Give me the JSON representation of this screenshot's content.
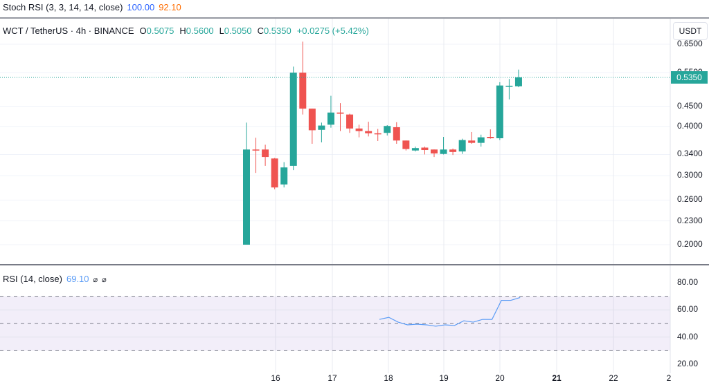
{
  "stoch_rsi": {
    "label": "Stoch RSI (3, 3, 14, 14, close)",
    "k_value": "100.00",
    "d_value": "92.10",
    "k_color": "#2962ff",
    "d_color": "#ff6d00"
  },
  "main": {
    "symbol": "WCT / TetherUS · 4h · BINANCE",
    "open_label": "O",
    "open": "0.5075",
    "high_label": "H",
    "high": "0.5600",
    "low_label": "L",
    "low": "0.5050",
    "close_label": "C",
    "close": "0.5350",
    "change": "+0.0275 (+5.42%)",
    "currency": "USDT",
    "last_price_tag": "0.5350",
    "up_color": "#26a69a",
    "down_color": "#ef5350",
    "price_axis": [
      "0.6500",
      "0.5500",
      "0.4500",
      "0.4000",
      "0.3400",
      "0.3000",
      "0.2600",
      "0.2300",
      "0.2000"
    ]
  },
  "rsi": {
    "label": "RSI (14, close)",
    "value": "69.10",
    "icon1": "⌀",
    "icon2": "⌀",
    "line_color": "#5b9cf6",
    "band_color": "#7e57c2",
    "axis": [
      "80.00",
      "60.00",
      "40.00",
      "20.00"
    ],
    "upper_band": 70,
    "middle_band": 50,
    "lower_band": 30
  },
  "time_axis": [
    {
      "label": "16",
      "bold": false
    },
    {
      "label": "17",
      "bold": false
    },
    {
      "label": "18",
      "bold": false
    },
    {
      "label": "19",
      "bold": false
    },
    {
      "label": "20",
      "bold": false
    },
    {
      "label": "21",
      "bold": true
    },
    {
      "label": "22",
      "bold": false
    },
    {
      "label": "2",
      "bold": false
    }
  ],
  "candles": [
    {
      "o": 0.2,
      "h": 0.41,
      "l": 0.2,
      "c": 0.35
    },
    {
      "o": 0.35,
      "h": 0.375,
      "l": 0.305,
      "c": 0.349
    },
    {
      "o": 0.35,
      "h": 0.36,
      "l": 0.318,
      "c": 0.335
    },
    {
      "o": 0.332,
      "h": 0.333,
      "l": 0.277,
      "c": 0.28
    },
    {
      "o": 0.285,
      "h": 0.325,
      "l": 0.28,
      "c": 0.315
    },
    {
      "o": 0.318,
      "h": 0.57,
      "l": 0.31,
      "c": 0.55
    },
    {
      "o": 0.55,
      "h": 0.66,
      "l": 0.43,
      "c": 0.445
    },
    {
      "o": 0.445,
      "h": 0.445,
      "l": 0.362,
      "c": 0.392
    },
    {
      "o": 0.393,
      "h": 0.41,
      "l": 0.365,
      "c": 0.403
    },
    {
      "o": 0.405,
      "h": 0.48,
      "l": 0.398,
      "c": 0.435
    },
    {
      "o": 0.435,
      "h": 0.46,
      "l": 0.39,
      "c": 0.432
    },
    {
      "o": 0.43,
      "h": 0.432,
      "l": 0.386,
      "c": 0.396
    },
    {
      "o": 0.396,
      "h": 0.405,
      "l": 0.376,
      "c": 0.39
    },
    {
      "o": 0.39,
      "h": 0.412,
      "l": 0.378,
      "c": 0.385
    },
    {
      "o": 0.385,
      "h": 0.395,
      "l": 0.368,
      "c": 0.384
    },
    {
      "o": 0.386,
      "h": 0.404,
      "l": 0.38,
      "c": 0.402
    },
    {
      "o": 0.399,
      "h": 0.411,
      "l": 0.362,
      "c": 0.369
    },
    {
      "o": 0.369,
      "h": 0.369,
      "l": 0.348,
      "c": 0.351
    },
    {
      "o": 0.348,
      "h": 0.356,
      "l": 0.346,
      "c": 0.353
    },
    {
      "o": 0.354,
      "h": 0.356,
      "l": 0.34,
      "c": 0.349
    },
    {
      "o": 0.35,
      "h": 0.35,
      "l": 0.335,
      "c": 0.342
    },
    {
      "o": 0.341,
      "h": 0.377,
      "l": 0.34,
      "c": 0.35
    },
    {
      "o": 0.35,
      "h": 0.352,
      "l": 0.339,
      "c": 0.345
    },
    {
      "o": 0.346,
      "h": 0.373,
      "l": 0.341,
      "c": 0.37
    },
    {
      "o": 0.369,
      "h": 0.388,
      "l": 0.362,
      "c": 0.364
    },
    {
      "o": 0.364,
      "h": 0.382,
      "l": 0.356,
      "c": 0.376
    },
    {
      "o": 0.377,
      "h": 0.394,
      "l": 0.373,
      "c": 0.374
    },
    {
      "o": 0.374,
      "h": 0.52,
      "l": 0.37,
      "c": 0.51
    },
    {
      "o": 0.508,
      "h": 0.53,
      "l": 0.47,
      "c": 0.509
    },
    {
      "o": 0.5075,
      "h": 0.56,
      "l": 0.505,
      "c": 0.535
    }
  ],
  "rsi_values": [
    53,
    54.5,
    51,
    49,
    49.5,
    49,
    48,
    49,
    48.5,
    52,
    51,
    53,
    53,
    67,
    67,
    69.1
  ]
}
